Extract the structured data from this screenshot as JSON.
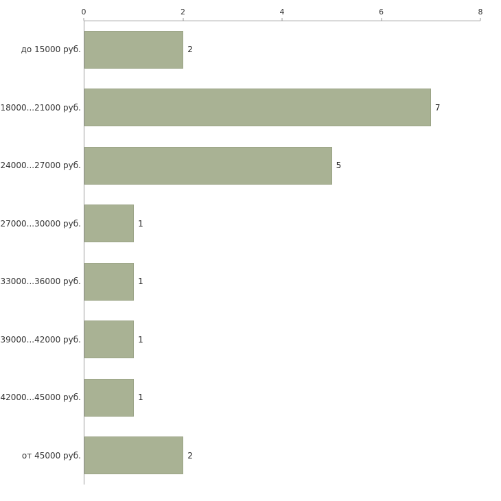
{
  "chart_data": {
    "type": "bar",
    "orientation": "horizontal",
    "title": "",
    "xlabel": "",
    "ylabel": "",
    "xlim": [
      0,
      8
    ],
    "x_ticks": [
      0,
      2,
      4,
      6,
      8
    ],
    "grid": false,
    "legend": "none",
    "bar_color": "#a9b294",
    "bar_border_color": "#9aa385",
    "categories": [
      "до 15000 руб.",
      "18000...21000 руб.",
      "24000...27000 руб.",
      "27000...30000 руб.",
      "33000...36000 руб.",
      "39000...42000 руб.",
      "42000...45000 руб.",
      "от 45000 руб."
    ],
    "values": [
      2,
      7,
      5,
      1,
      1,
      1,
      1,
      2
    ]
  }
}
